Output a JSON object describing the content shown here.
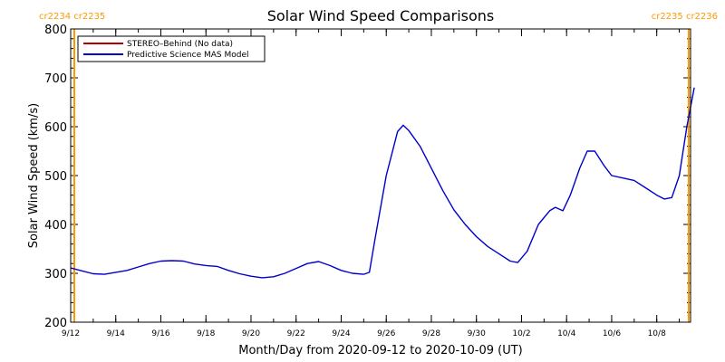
{
  "colors": {
    "background": "#ffffff",
    "axis": "#000000",
    "stereo": "#b40000",
    "model": "#0000cc",
    "carrington": "#ff9900"
  },
  "carrington": {
    "left_label": "cr2234 cr2235",
    "right_label": "cr2235 cr2236"
  },
  "chart_data": {
    "type": "line",
    "title": "Solar Wind Speed Comparisons",
    "xlabel": "Month/Day from 2020-09-12 to 2020-10-09 (UT)",
    "ylabel": "Solar Wind Speed (km/s)",
    "xlim": [
      "2020-09-12",
      "2020-10-09T12:00"
    ],
    "ylim": [
      200,
      800
    ],
    "y_ticks": [
      200,
      300,
      400,
      500,
      600,
      700,
      800
    ],
    "x_ticks": [
      {
        "date": "2020-09-12",
        "label": "9/12"
      },
      {
        "date": "2020-09-14",
        "label": "9/14"
      },
      {
        "date": "2020-09-16",
        "label": "9/16"
      },
      {
        "date": "2020-09-18",
        "label": "9/18"
      },
      {
        "date": "2020-09-20",
        "label": "9/20"
      },
      {
        "date": "2020-09-22",
        "label": "9/22"
      },
      {
        "date": "2020-09-24",
        "label": "9/24"
      },
      {
        "date": "2020-09-26",
        "label": "9/26"
      },
      {
        "date": "2020-09-28",
        "label": "9/28"
      },
      {
        "date": "2020-09-30",
        "label": "9/30"
      },
      {
        "date": "2020-10-02",
        "label": "10/2"
      },
      {
        "date": "2020-10-04",
        "label": "10/4"
      },
      {
        "date": "2020-10-06",
        "label": "10/6"
      },
      {
        "date": "2020-10-08",
        "label": "10/8"
      }
    ],
    "carrington_lines": [
      "2020-09-12",
      "2020-10-09T10:00"
    ],
    "legend_position": "top-left",
    "series": [
      {
        "name": "STEREO–Behind (No data)",
        "color": "#b40000",
        "points": []
      },
      {
        "name": "Predictive Science MAS Model",
        "color": "#0000cc",
        "points": [
          [
            "2020-09-12T00:00",
            311
          ],
          [
            "2020-09-12T12:00",
            305
          ],
          [
            "2020-09-13T00:00",
            299
          ],
          [
            "2020-09-13T12:00",
            298
          ],
          [
            "2020-09-14T00:00",
            302
          ],
          [
            "2020-09-14T12:00",
            306
          ],
          [
            "2020-09-15T00:00",
            313
          ],
          [
            "2020-09-15T12:00",
            320
          ],
          [
            "2020-09-16T00:00",
            325
          ],
          [
            "2020-09-16T12:00",
            326
          ],
          [
            "2020-09-17T00:00",
            325
          ],
          [
            "2020-09-17T12:00",
            319
          ],
          [
            "2020-09-18T00:00",
            316
          ],
          [
            "2020-09-18T12:00",
            314
          ],
          [
            "2020-09-19T00:00",
            306
          ],
          [
            "2020-09-19T12:00",
            299
          ],
          [
            "2020-09-20T00:00",
            294
          ],
          [
            "2020-09-20T12:00",
            291
          ],
          [
            "2020-09-21T00:00",
            293
          ],
          [
            "2020-09-21T12:00",
            300
          ],
          [
            "2020-09-22T00:00",
            310
          ],
          [
            "2020-09-22T12:00",
            320
          ],
          [
            "2020-09-23T00:00",
            324
          ],
          [
            "2020-09-23T12:00",
            316
          ],
          [
            "2020-09-24T00:00",
            306
          ],
          [
            "2020-09-24T12:00",
            300
          ],
          [
            "2020-09-25T00:00",
            298
          ],
          [
            "2020-09-25T06:00",
            302
          ],
          [
            "2020-09-25T12:00",
            370
          ],
          [
            "2020-09-26T00:00",
            500
          ],
          [
            "2020-09-26T12:00",
            590
          ],
          [
            "2020-09-26T18:00",
            603
          ],
          [
            "2020-09-27T00:00",
            592
          ],
          [
            "2020-09-27T12:00",
            560
          ],
          [
            "2020-09-28T00:00",
            515
          ],
          [
            "2020-09-28T12:00",
            470
          ],
          [
            "2020-09-29T00:00",
            430
          ],
          [
            "2020-09-29T12:00",
            400
          ],
          [
            "2020-09-30T00:00",
            375
          ],
          [
            "2020-09-30T12:00",
            355
          ],
          [
            "2020-10-01T00:00",
            340
          ],
          [
            "2020-10-01T12:00",
            325
          ],
          [
            "2020-10-01T20:00",
            322
          ],
          [
            "2020-10-02T06:00",
            345
          ],
          [
            "2020-10-02T18:00",
            400
          ],
          [
            "2020-10-03T06:00",
            428
          ],
          [
            "2020-10-03T12:00",
            435
          ],
          [
            "2020-10-03T20:00",
            428
          ],
          [
            "2020-10-04T04:00",
            460
          ],
          [
            "2020-10-04T14:00",
            515
          ],
          [
            "2020-10-04T22:00",
            550
          ],
          [
            "2020-10-05T06:00",
            550
          ],
          [
            "2020-10-05T16:00",
            520
          ],
          [
            "2020-10-06T00:00",
            500
          ],
          [
            "2020-10-06T12:00",
            495
          ],
          [
            "2020-10-07T00:00",
            490
          ],
          [
            "2020-10-07T12:00",
            475
          ],
          [
            "2020-10-08T00:00",
            460
          ],
          [
            "2020-10-08T08:00",
            452
          ],
          [
            "2020-10-08T16:00",
            455
          ],
          [
            "2020-10-09T00:00",
            500
          ],
          [
            "2020-10-09T08:00",
            600
          ],
          [
            "2020-10-09T16:00",
            680
          ]
        ]
      }
    ]
  }
}
